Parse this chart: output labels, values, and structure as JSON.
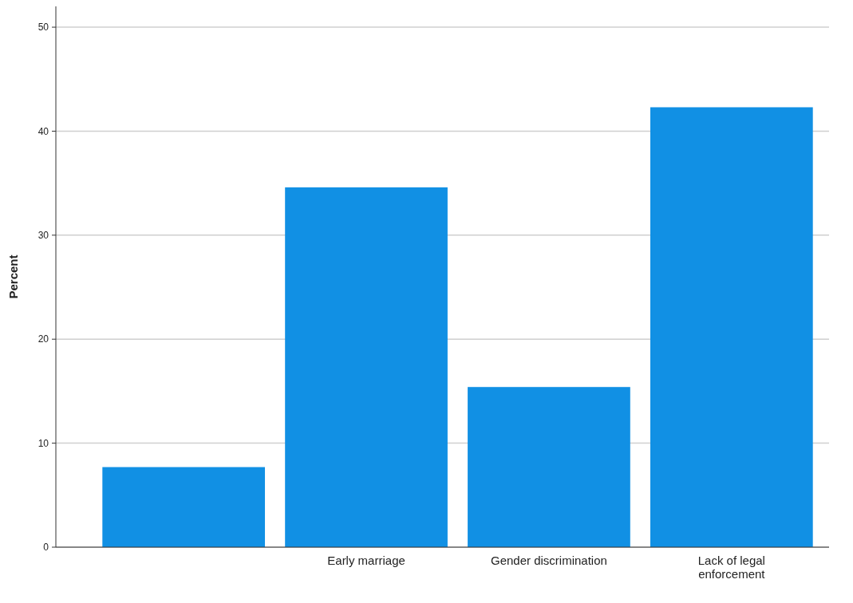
{
  "chart_data": {
    "type": "bar",
    "ylabel": "Percent",
    "categories": [
      null,
      "Early marriage",
      "Gender discrimination",
      "Lack of legal enforcement"
    ],
    "values": [
      7.7,
      34.6,
      15.4,
      42.3
    ],
    "color": "#1190e4",
    "ylim": [
      0,
      52
    ],
    "yticks": [
      0,
      10,
      20,
      30,
      40,
      50
    ],
    "grid": "y"
  }
}
